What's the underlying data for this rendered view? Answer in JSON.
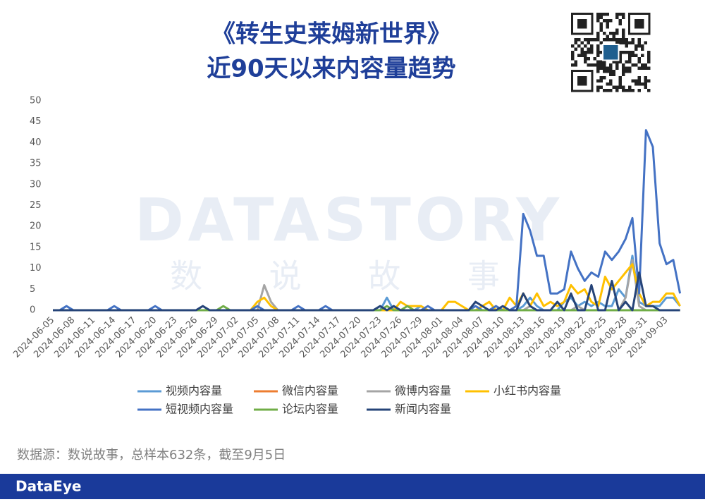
{
  "chart_data": {
    "type": "line",
    "title": "《转生史莱姆新世界》",
    "subtitle": "近90天以来内容量趋势",
    "watermark": "DATASTORY",
    "watermark_sub": "数 说 故 事",
    "source": "数据源：数说故事，总样本632条，截至9月5日",
    "brand": "DataEye",
    "categories": [
      "2024-06-05",
      null,
      null,
      "2024-06-08",
      null,
      null,
      "2024-06-11",
      null,
      null,
      "2024-06-14",
      null,
      null,
      "2024-06-17",
      null,
      null,
      "2024-06-20",
      null,
      null,
      "2024-06-23",
      null,
      null,
      "2024-06-26",
      null,
      null,
      "2024-06-29",
      null,
      null,
      "2024-07-02",
      null,
      null,
      "2024-07-05",
      null,
      null,
      "2024-07-08",
      null,
      null,
      "2024-07-11",
      null,
      null,
      "2024-07-14",
      null,
      null,
      "2024-07-17",
      null,
      null,
      "2024-07-20",
      null,
      null,
      "2024-07-23",
      null,
      null,
      "2024-07-26",
      null,
      null,
      "2024-07-29",
      null,
      null,
      "2024-08-01",
      null,
      null,
      "2024-08-04",
      null,
      null,
      "2024-08-07",
      null,
      null,
      "2024-08-10",
      null,
      null,
      "2024-08-13",
      null,
      null,
      "2024-08-16",
      null,
      null,
      "2024-08-19",
      null,
      null,
      "2024-08-22",
      null,
      null,
      "2024-08-25",
      null,
      null,
      "2024-08-28",
      null,
      null,
      "2024-08-31",
      null,
      null,
      "2024-09-03",
      null,
      null
    ],
    "ylim": [
      0,
      50
    ],
    "yticks": [
      0,
      5,
      10,
      15,
      20,
      25,
      30,
      35,
      40,
      45,
      50
    ],
    "grid": false,
    "series": [
      {
        "name": "视频内容量",
        "color": "#5b9bd5",
        "values": [
          0,
          0,
          1,
          0,
          0,
          0,
          0,
          0,
          0,
          0,
          0,
          0,
          0,
          0,
          0,
          0,
          0,
          0,
          0,
          0,
          0,
          0,
          0,
          0,
          0,
          0,
          0,
          0,
          0,
          0,
          0,
          0,
          0,
          0,
          0,
          0,
          0,
          0,
          0,
          0,
          0,
          0,
          0,
          0,
          0,
          0,
          0,
          0,
          0,
          3,
          0,
          0,
          0,
          0,
          1,
          0,
          0,
          0,
          0,
          0,
          0,
          0,
          1,
          0,
          0,
          1,
          0,
          0,
          0,
          1,
          3,
          1,
          0,
          0,
          0,
          2,
          3,
          1,
          2,
          1,
          2,
          1,
          1,
          5,
          3,
          13,
          2,
          1,
          1,
          1,
          3,
          3,
          1
        ]
      },
      {
        "name": "微信内容量",
        "color": "#ed7d31",
        "values": [
          0,
          0,
          0,
          0,
          0,
          0,
          0,
          0,
          0,
          0,
          0,
          0,
          0,
          0,
          0,
          0,
          0,
          0,
          0,
          0,
          0,
          0,
          0,
          0,
          0,
          0,
          0,
          0,
          0,
          0,
          0,
          0,
          0,
          0,
          0,
          0,
          0,
          0,
          0,
          0,
          0,
          0,
          0,
          0,
          0,
          0,
          0,
          0,
          0,
          0,
          0,
          0,
          0,
          0,
          0,
          0,
          0,
          0,
          0,
          0,
          0,
          0,
          0,
          0,
          0,
          0,
          0,
          0,
          0,
          0,
          0,
          0,
          0,
          0,
          0,
          0,
          0,
          0,
          0,
          0,
          0,
          0,
          0,
          0,
          0,
          0,
          0,
          0,
          0,
          0,
          0,
          0,
          0
        ]
      },
      {
        "name": "微博内容量",
        "color": "#a5a5a5",
        "values": [
          0,
          0,
          0,
          0,
          0,
          0,
          0,
          0,
          0,
          0,
          0,
          0,
          0,
          0,
          0,
          0,
          0,
          0,
          0,
          0,
          0,
          0,
          0,
          0,
          0,
          0,
          0,
          0,
          0,
          0,
          0,
          6,
          2,
          0,
          0,
          0,
          0,
          0,
          0,
          0,
          0,
          0,
          0,
          0,
          0,
          0,
          0,
          0,
          0,
          0,
          0,
          0,
          0,
          0,
          0,
          0,
          0,
          0,
          0,
          0,
          0,
          0,
          0,
          0,
          0,
          0,
          0,
          0,
          0,
          0,
          1,
          0,
          0,
          0,
          0,
          0,
          0,
          1,
          0,
          0,
          0,
          0,
          0,
          0,
          3,
          12,
          1,
          0,
          0,
          0,
          0,
          0,
          0
        ]
      },
      {
        "name": "小红书内容量",
        "color": "#ffc000",
        "values": [
          0,
          0,
          0,
          0,
          0,
          0,
          0,
          0,
          0,
          0,
          0,
          0,
          0,
          0,
          0,
          0,
          0,
          0,
          0,
          0,
          0,
          0,
          0,
          0,
          0,
          0,
          0,
          0,
          0,
          0,
          2,
          3,
          1,
          0,
          0,
          0,
          0,
          0,
          0,
          0,
          0,
          0,
          0,
          0,
          0,
          0,
          0,
          0,
          0,
          0,
          0,
          2,
          1,
          1,
          1,
          0,
          0,
          0,
          2,
          2,
          1,
          0,
          0,
          1,
          2,
          0,
          0,
          3,
          1,
          4,
          1,
          4,
          1,
          2,
          1,
          2,
          6,
          4,
          5,
          2,
          1,
          8,
          5,
          7,
          9,
          11,
          4,
          1,
          2,
          2,
          4,
          4,
          1
        ]
      },
      {
        "name": "短视频内容量",
        "color": "#4472c4",
        "values": [
          0,
          0,
          1,
          0,
          0,
          0,
          0,
          0,
          0,
          1,
          0,
          0,
          0,
          0,
          0,
          1,
          0,
          0,
          0,
          0,
          0,
          0,
          1,
          0,
          0,
          0,
          0,
          0,
          0,
          0,
          1,
          0,
          0,
          0,
          0,
          0,
          1,
          0,
          0,
          0,
          1,
          0,
          0,
          0,
          0,
          0,
          0,
          0,
          1,
          0,
          1,
          0,
          0,
          0,
          0,
          1,
          0,
          0,
          0,
          0,
          0,
          0,
          1,
          0,
          0,
          1,
          0,
          0,
          1,
          23,
          19,
          13,
          13,
          4,
          4,
          5,
          14,
          10,
          7,
          9,
          8,
          14,
          12,
          14,
          17,
          22,
          4,
          43,
          39,
          16,
          11,
          12,
          4
        ]
      },
      {
        "name": "论坛内容量",
        "color": "#70ad47",
        "values": [
          0,
          0,
          0,
          0,
          0,
          0,
          0,
          0,
          0,
          0,
          0,
          0,
          0,
          0,
          0,
          0,
          0,
          0,
          0,
          0,
          0,
          0,
          0,
          0,
          0,
          1,
          0,
          0,
          0,
          0,
          0,
          0,
          0,
          0,
          0,
          0,
          0,
          0,
          0,
          0,
          0,
          0,
          0,
          0,
          0,
          0,
          0,
          0,
          0,
          1,
          0,
          0,
          1,
          0,
          0,
          0,
          0,
          0,
          0,
          0,
          0,
          0,
          0,
          0,
          0,
          0,
          0,
          0,
          0,
          0,
          0,
          0,
          0,
          0,
          0,
          0,
          0,
          0,
          0,
          0,
          0,
          0,
          0,
          0,
          0,
          0,
          0,
          0,
          0,
          0,
          0,
          0,
          0
        ]
      },
      {
        "name": "新闻内容量",
        "color": "#264478",
        "values": [
          0,
          0,
          0,
          0,
          0,
          0,
          0,
          0,
          0,
          0,
          0,
          0,
          0,
          0,
          0,
          0,
          0,
          0,
          0,
          0,
          0,
          0,
          1,
          0,
          0,
          0,
          0,
          0,
          0,
          0,
          0,
          0,
          0,
          0,
          0,
          0,
          0,
          0,
          0,
          0,
          0,
          0,
          0,
          0,
          0,
          0,
          0,
          0,
          1,
          0,
          1,
          0,
          0,
          0,
          0,
          0,
          0,
          0,
          0,
          0,
          0,
          0,
          2,
          1,
          0,
          0,
          1,
          0,
          0,
          4,
          1,
          0,
          0,
          0,
          2,
          0,
          4,
          0,
          0,
          6,
          0,
          0,
          7,
          0,
          2,
          0,
          9,
          1,
          1,
          0,
          0,
          0,
          0
        ]
      }
    ]
  }
}
